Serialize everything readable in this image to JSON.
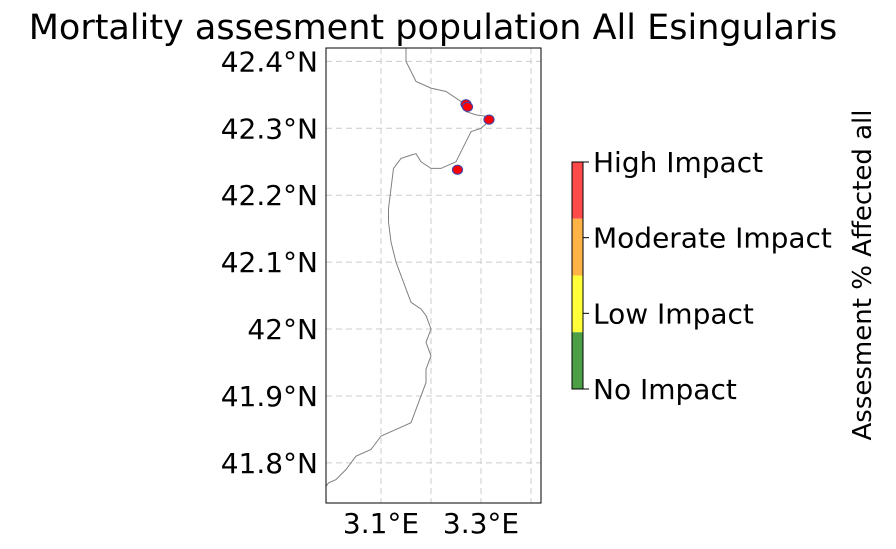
{
  "title": "Mortality assesment population All Esingularis",
  "map": {
    "lon_range": [
      2.99,
      3.42
    ],
    "lat_range": [
      41.74,
      42.42
    ],
    "lat_ticks": [
      {
        "value": 42.4,
        "label": "42.4°N"
      },
      {
        "value": 42.3,
        "label": "42.3°N"
      },
      {
        "value": 42.2,
        "label": "42.2°N"
      },
      {
        "value": 42.1,
        "label": "42.1°N"
      },
      {
        "value": 42.0,
        "label": "42°N"
      },
      {
        "value": 41.9,
        "label": "41.9°N"
      },
      {
        "value": 41.8,
        "label": "41.8°N"
      }
    ],
    "lon_ticks": [
      {
        "value": 3.1,
        "label": "3.1°E"
      },
      {
        "value": 3.3,
        "label": "3.3°E"
      }
    ],
    "lon_gridlines": [
      3.1,
      3.2,
      3.3,
      3.4
    ],
    "grid": true,
    "coastline": [
      [
        3.15,
        42.42
      ],
      [
        3.15,
        42.4
      ],
      [
        3.16,
        42.385
      ],
      [
        3.17,
        42.37
      ],
      [
        3.2,
        42.36
      ],
      [
        3.23,
        42.355
      ],
      [
        3.26,
        42.34
      ],
      [
        3.27,
        42.325
      ],
      [
        3.29,
        42.32
      ],
      [
        3.31,
        42.318
      ],
      [
        3.315,
        42.31
      ],
      [
        3.3,
        42.3
      ],
      [
        3.28,
        42.295
      ],
      [
        3.27,
        42.28
      ],
      [
        3.26,
        42.265
      ],
      [
        3.25,
        42.25
      ],
      [
        3.235,
        42.245
      ],
      [
        3.22,
        42.24
      ],
      [
        3.2,
        42.24
      ],
      [
        3.18,
        42.25
      ],
      [
        3.17,
        42.262
      ],
      [
        3.16,
        42.26
      ],
      [
        3.14,
        42.255
      ],
      [
        3.125,
        42.24
      ],
      [
        3.12,
        42.21
      ],
      [
        3.115,
        42.18
      ],
      [
        3.115,
        42.16
      ],
      [
        3.12,
        42.13
      ],
      [
        3.13,
        42.1
      ],
      [
        3.14,
        42.08
      ],
      [
        3.15,
        42.06
      ],
      [
        3.16,
        42.04
      ],
      [
        3.18,
        42.03
      ],
      [
        3.19,
        42.02
      ],
      [
        3.2,
        42.0
      ],
      [
        3.19,
        41.98
      ],
      [
        3.2,
        41.96
      ],
      [
        3.19,
        41.94
      ],
      [
        3.19,
        41.92
      ],
      [
        3.18,
        41.9
      ],
      [
        3.17,
        41.88
      ],
      [
        3.16,
        41.86
      ],
      [
        3.13,
        41.85
      ],
      [
        3.1,
        41.84
      ],
      [
        3.08,
        41.82
      ],
      [
        3.05,
        41.81
      ],
      [
        3.03,
        41.79
      ],
      [
        3.01,
        41.775
      ],
      [
        2.995,
        41.77
      ],
      [
        2.99,
        41.765
      ]
    ],
    "points": [
      {
        "lon": 3.27,
        "lat": 42.336,
        "category": "High Impact"
      },
      {
        "lon": 3.273,
        "lat": 42.332,
        "category": "High Impact"
      },
      {
        "lon": 3.316,
        "lat": 42.313,
        "category": "High Impact"
      },
      {
        "lon": 3.253,
        "lat": 42.238,
        "category": "High Impact"
      }
    ],
    "point_colors": {
      "fill": "#ff0000",
      "edge": "#4b3fa0"
    }
  },
  "legend": {
    "title": "Assesment % Affected all",
    "entries": [
      {
        "label": "High Impact",
        "color": "#ff4a4a"
      },
      {
        "label": "Moderate Impact",
        "color": "#ffb347"
      },
      {
        "label": "Low Impact",
        "color": "#ffff3a"
      },
      {
        "label": "No Impact",
        "color": "#4c9f45"
      }
    ]
  }
}
